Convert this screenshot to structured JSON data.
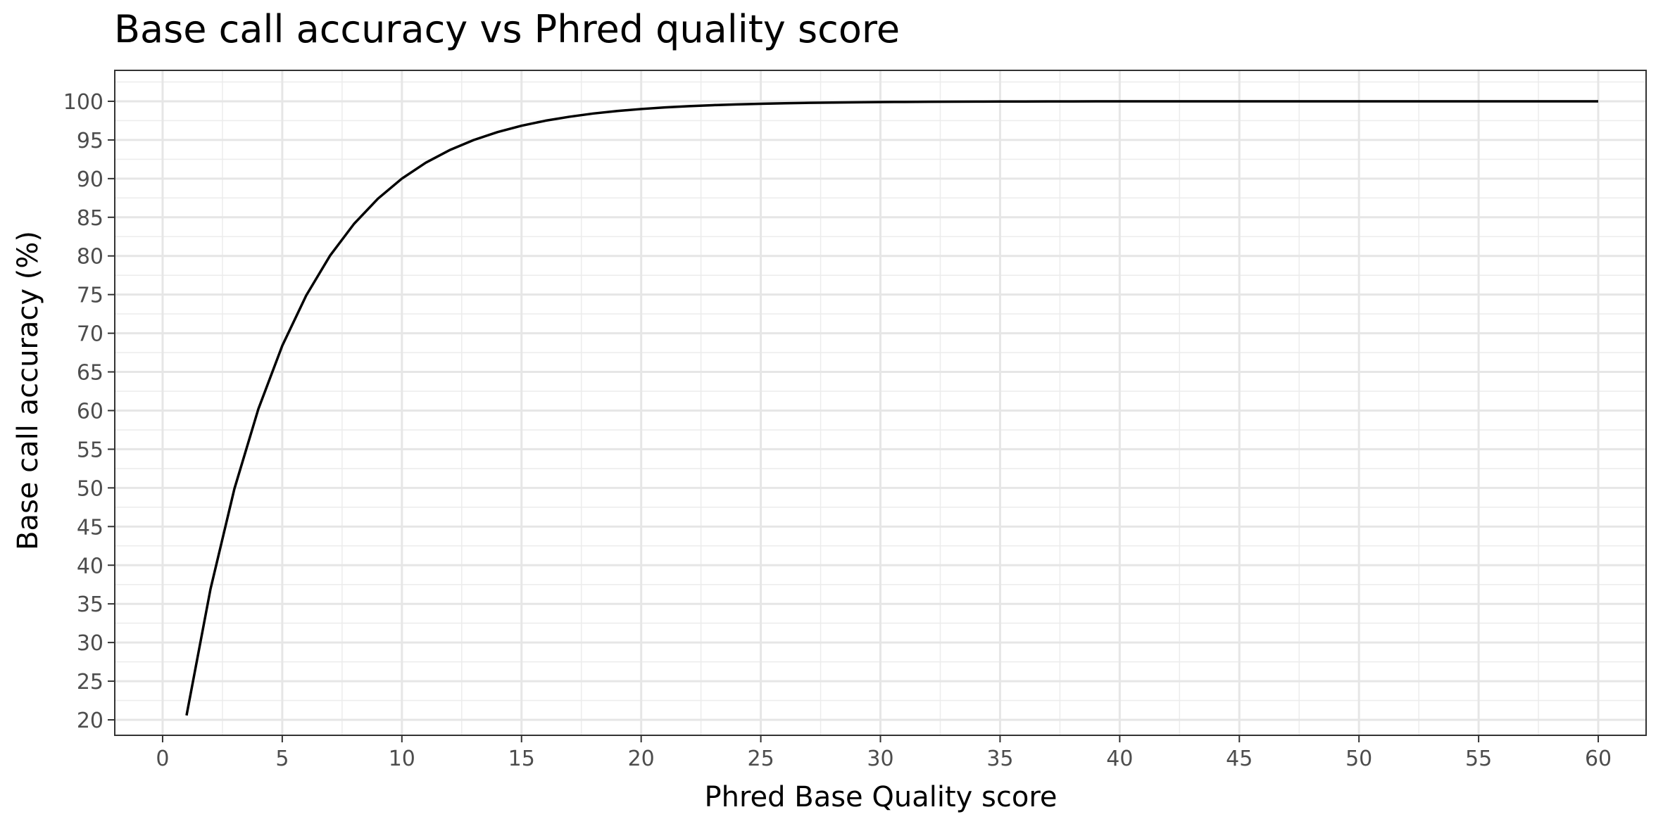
{
  "chart_data": {
    "type": "line",
    "title": "Base call accuracy vs Phred quality score",
    "xlabel": "Phred Base Quality score",
    "ylabel": "Base call accuracy (%)",
    "xlim": [
      -2,
      62
    ],
    "ylim": [
      18,
      104
    ],
    "x_ticks": [
      "0",
      "5",
      "10",
      "15",
      "20",
      "25",
      "30",
      "35",
      "40",
      "45",
      "50",
      "55",
      "60"
    ],
    "y_ticks": [
      "20",
      "25",
      "30",
      "35",
      "40",
      "45",
      "50",
      "55",
      "60",
      "65",
      "70",
      "75",
      "80",
      "85",
      "90",
      "95",
      "100"
    ],
    "grid": true,
    "line_color": "#000000",
    "series": [
      {
        "x": [
          1,
          2,
          3,
          4,
          5,
          6,
          7,
          8,
          9,
          10,
          11,
          12,
          13,
          14,
          15,
          16,
          17,
          18,
          19,
          20,
          21,
          22,
          23,
          24,
          25,
          26,
          27,
          28,
          29,
          30,
          31,
          32,
          33,
          34,
          35,
          36,
          37,
          38,
          39,
          40,
          41,
          42,
          43,
          44,
          45,
          46,
          47,
          48,
          49,
          50,
          51,
          52,
          53,
          54,
          55,
          56,
          57,
          58,
          59,
          60
        ],
        "y": [
          20.57,
          36.9,
          49.88,
          60.19,
          68.38,
          74.88,
          80.05,
          84.15,
          87.41,
          90.0,
          92.06,
          93.69,
          94.99,
          96.02,
          96.84,
          97.49,
          98.0,
          98.42,
          98.74,
          99.0,
          99.21,
          99.37,
          99.5,
          99.6,
          99.68,
          99.75,
          99.8,
          99.84,
          99.87,
          99.9,
          99.92,
          99.94,
          99.95,
          99.96,
          99.97,
          99.97,
          99.98,
          99.98,
          99.99,
          99.99,
          99.99,
          99.99,
          99.99,
          100.0,
          100.0,
          100.0,
          100.0,
          100.0,
          100.0,
          100.0,
          100.0,
          100.0,
          100.0,
          100.0,
          100.0,
          100.0,
          100.0,
          100.0,
          100.0,
          100.0
        ]
      }
    ]
  }
}
